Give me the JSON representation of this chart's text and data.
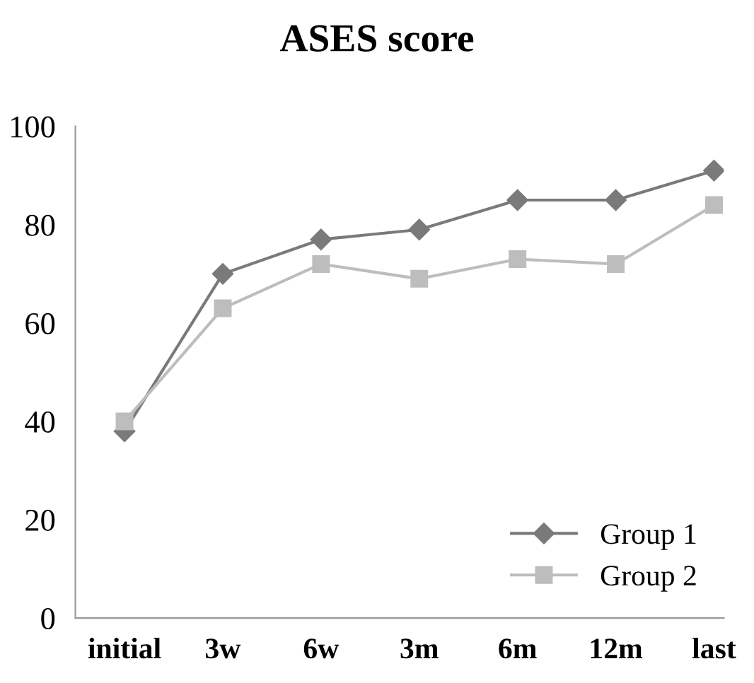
{
  "chart_data": {
    "type": "line",
    "title": "ASES score",
    "categories": [
      "initial",
      "3w",
      "6w",
      "3m",
      "6m",
      "12m",
      "last"
    ],
    "series": [
      {
        "name": "Group 1",
        "color": "#7a7a7a",
        "marker": "diamond",
        "values": [
          38,
          70,
          77,
          79,
          85,
          85,
          91
        ]
      },
      {
        "name": "Group 2",
        "color": "#bdbdbd",
        "marker": "square",
        "values": [
          40,
          63,
          72,
          69,
          73,
          72,
          84
        ]
      }
    ],
    "ylim": [
      0,
      100
    ],
    "yticks": [
      0,
      20,
      40,
      60,
      80,
      100
    ],
    "grid": false,
    "legend": "bottom right"
  }
}
